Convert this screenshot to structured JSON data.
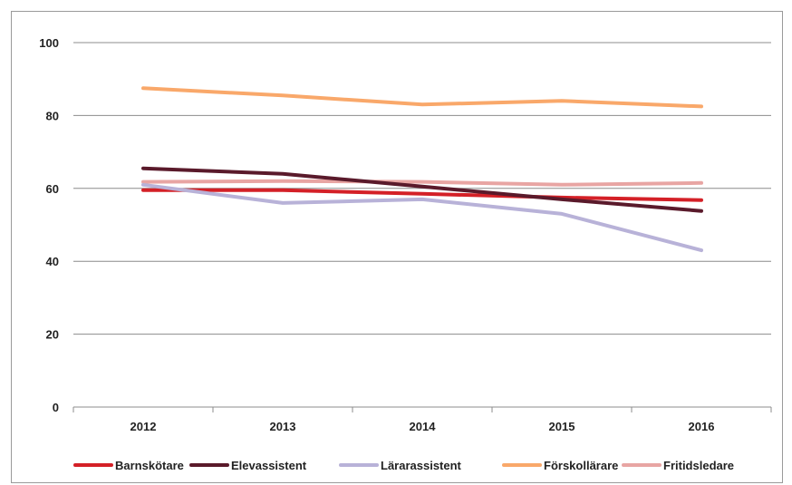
{
  "chart_data": {
    "type": "line",
    "x": [
      "2012",
      "2013",
      "2014",
      "2015",
      "2016"
    ],
    "ylim": [
      0,
      100
    ],
    "yticks": [
      0,
      20,
      40,
      60,
      80,
      100
    ],
    "grid": true,
    "legend_placement": "bottom",
    "series": [
      {
        "name": "Barnskötare",
        "color": "#d42027",
        "values": [
          59.5,
          59.5,
          58.5,
          57.5,
          56.8
        ]
      },
      {
        "name": "Elevassistent",
        "color": "#5a1a2b",
        "values": [
          65.5,
          64.0,
          60.5,
          57.0,
          53.8
        ]
      },
      {
        "name": "Lärarassistent",
        "color": "#b8b2d8",
        "values": [
          61.0,
          56.0,
          57.0,
          53.0,
          43.0
        ]
      },
      {
        "name": "Förskollärare",
        "color": "#f9a86a",
        "values": [
          87.5,
          85.5,
          83.0,
          84.0,
          82.5
        ]
      },
      {
        "name": "Fritidsledare",
        "color": "#e8a5a3",
        "values": [
          61.8,
          62.0,
          61.8,
          61.0,
          61.5
        ]
      }
    ]
  }
}
